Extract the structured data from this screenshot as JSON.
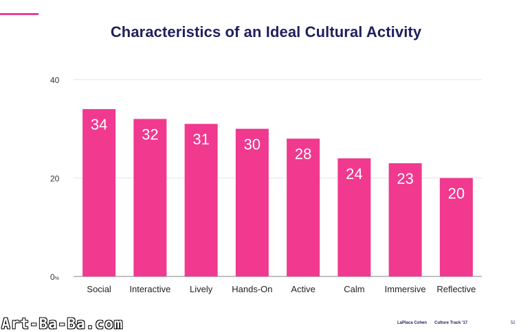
{
  "footer": {
    "brand": "LaPlaca Cohen",
    "report": "Culture Track '17",
    "page_number": "52"
  },
  "watermark": "Art-Ba-Ba.com",
  "colors": {
    "bar": "#f0398f",
    "title": "#1f1f5e",
    "accent": "#ef3c8e",
    "value_label": "#ffffff"
  },
  "chart_data": {
    "type": "bar",
    "title": "Characteristics of an Ideal Cultural Activity",
    "xlabel": "",
    "ylabel": "",
    "categories": [
      "Social",
      "Interactive",
      "Lively",
      "Hands-On",
      "Active",
      "Calm",
      "Immersive",
      "Reflective"
    ],
    "values": [
      34,
      32,
      31,
      30,
      28,
      24,
      23,
      20
    ],
    "ylim": [
      0,
      40
    ],
    "y_ticks": [
      {
        "value": 0,
        "label": "0",
        "suffix": "%"
      },
      {
        "value": 20,
        "label": "20",
        "suffix": ""
      },
      {
        "value": 40,
        "label": "40",
        "suffix": ""
      }
    ],
    "grid": true,
    "legend": "none",
    "data_labels": "inside-top"
  }
}
